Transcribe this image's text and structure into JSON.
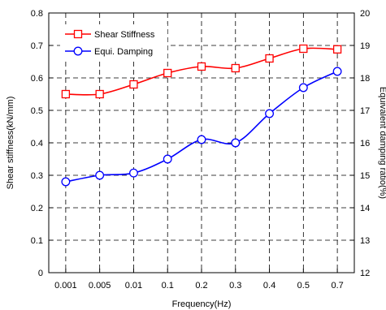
{
  "chart_data": {
    "type": "line",
    "categories": [
      "0.001",
      "0.005",
      "0.01",
      "0.1",
      "0.2",
      "0.3",
      "0.4",
      "0.5",
      "0.7"
    ],
    "xlabel": "Frequency(Hz)",
    "ylabel_left": "Shear stiffness(kN/mm)",
    "ylabel_right": "Equivalent damping ratio(%)",
    "y_left": {
      "range": [
        0,
        0.8
      ],
      "ticks": [
        "0",
        "0.1",
        "0.2",
        "0.3",
        "0.4",
        "0.5",
        "0.6",
        "0.7",
        "0.8"
      ]
    },
    "y_right": {
      "range": [
        12,
        20
      ],
      "ticks": [
        "12",
        "13",
        "14",
        "15",
        "16",
        "17",
        "18",
        "19",
        "20"
      ]
    },
    "grid": "dashed",
    "legend_position": "top-left",
    "series": [
      {
        "name": "Shear Stiffness",
        "axis": "left",
        "marker": "square",
        "color": "#ff0000",
        "values": [
          0.55,
          0.55,
          0.58,
          0.615,
          0.635,
          0.63,
          0.66,
          0.69,
          0.688
        ]
      },
      {
        "name": "Equi. Damping",
        "axis": "right",
        "marker": "circle",
        "color": "#0000ff",
        "values": [
          14.8,
          15.0,
          15.07,
          15.5,
          16.1,
          16.0,
          16.9,
          17.7,
          18.2
        ]
      }
    ]
  }
}
